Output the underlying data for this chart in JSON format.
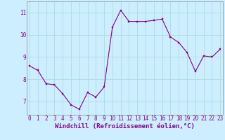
{
  "x": [
    0,
    1,
    2,
    3,
    4,
    5,
    6,
    7,
    8,
    9,
    10,
    11,
    12,
    13,
    14,
    15,
    16,
    17,
    18,
    19,
    20,
    21,
    22,
    23
  ],
  "y": [
    8.6,
    8.4,
    7.8,
    7.75,
    7.35,
    6.85,
    6.65,
    7.4,
    7.2,
    7.65,
    10.35,
    11.1,
    10.6,
    10.6,
    10.6,
    10.65,
    10.7,
    9.9,
    9.65,
    9.2,
    8.35,
    9.05,
    9.0,
    9.35
  ],
  "line_color": "#880088",
  "marker_color": "#880088",
  "bg_color": "#cceeff",
  "grid_color": "#aadddd",
  "xlabel": "Windchill (Refroidissement éolien,°C)",
  "xlabel_color": "#880088",
  "ytick_labels": [
    "7",
    "8",
    "9",
    "10",
    "11"
  ],
  "ytick_vals": [
    7,
    8,
    9,
    10,
    11
  ],
  "xtick_labels": [
    "0",
    "1",
    "2",
    "3",
    "4",
    "5",
    "6",
    "7",
    "8",
    "9",
    "10",
    "11",
    "12",
    "13",
    "14",
    "15",
    "16",
    "17",
    "18",
    "19",
    "20",
    "21",
    "22",
    "23"
  ],
  "xtick_vals": [
    0,
    1,
    2,
    3,
    4,
    5,
    6,
    7,
    8,
    9,
    10,
    11,
    12,
    13,
    14,
    15,
    16,
    17,
    18,
    19,
    20,
    21,
    22,
    23
  ],
  "ylim": [
    6.4,
    11.5
  ],
  "xlim": [
    -0.3,
    23.3
  ],
  "tick_fontsize": 5.5,
  "xlabel_fontsize": 6.5
}
